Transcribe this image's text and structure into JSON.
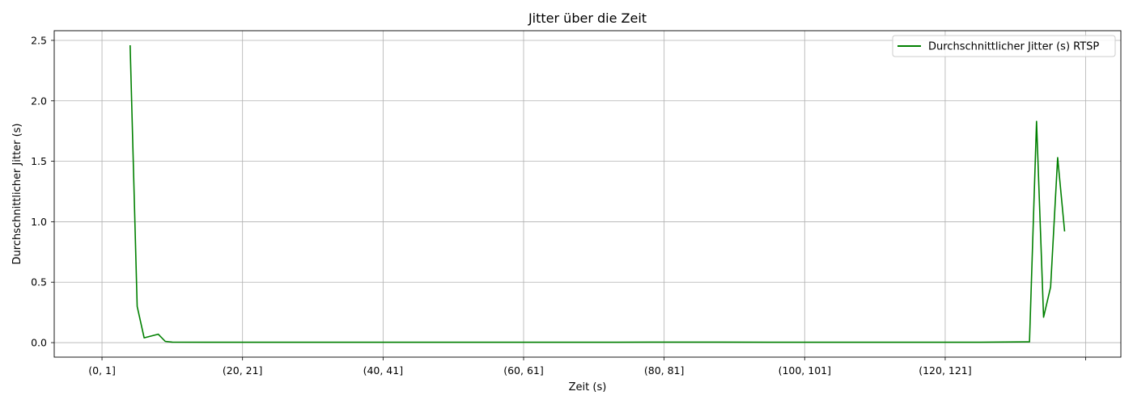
{
  "chart_data": {
    "type": "line",
    "title": "Jitter über die Zeit",
    "xlabel": "Zeit (s)",
    "ylabel": "Durchschnittlicher Jitter (s)",
    "x_tick_labels": [
      "(0, 1]",
      "(20, 21]",
      "(40, 41]",
      "(60, 61]",
      "(80, 81]",
      "(100, 101]",
      "(120, 121]",
      ""
    ],
    "x_tick_positions": [
      0,
      20,
      40,
      60,
      80,
      100,
      120,
      140
    ],
    "xlim": [
      -6.8,
      145
    ],
    "y_ticks": [
      0.0,
      0.5,
      1.0,
      1.5,
      2.0,
      2.5
    ],
    "y_tick_labels": [
      "0.0",
      "0.5",
      "1.0",
      "1.5",
      "2.0",
      "2.5"
    ],
    "ylim": [
      -0.12,
      2.58
    ],
    "grid": true,
    "legend_position": "top-right",
    "series": [
      {
        "name": "Durchschnittlicher Jitter (s) RTSP",
        "color": "#008000",
        "points": [
          [
            4,
            2.46
          ],
          [
            5,
            0.3
          ],
          [
            6,
            0.04
          ],
          [
            8,
            0.07
          ],
          [
            9,
            0.01
          ],
          [
            10,
            0.004
          ],
          [
            15,
            0.003
          ],
          [
            20,
            0.003
          ],
          [
            30,
            0.003
          ],
          [
            40,
            0.003
          ],
          [
            50,
            0.003
          ],
          [
            60,
            0.003
          ],
          [
            70,
            0.003
          ],
          [
            78,
            0.004
          ],
          [
            86,
            0.004
          ],
          [
            95,
            0.003
          ],
          [
            105,
            0.003
          ],
          [
            115,
            0.003
          ],
          [
            125,
            0.003
          ],
          [
            132,
            0.006
          ],
          [
            133,
            1.83
          ],
          [
            134,
            0.21
          ],
          [
            135,
            0.46
          ],
          [
            136,
            1.53
          ],
          [
            137,
            0.92
          ]
        ]
      }
    ]
  }
}
